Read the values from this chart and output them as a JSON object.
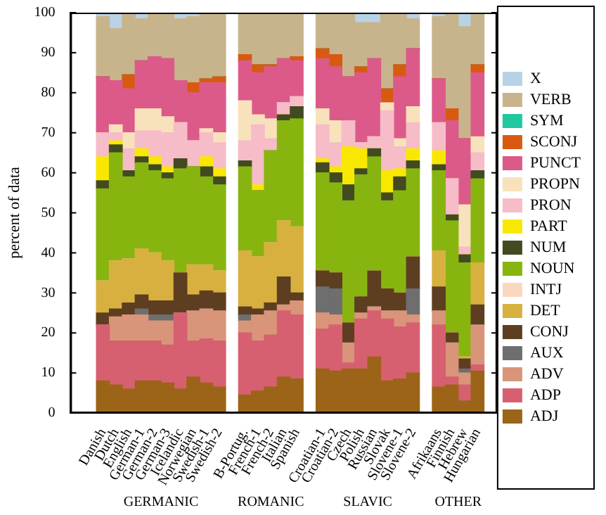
{
  "chart_data": {
    "type": "bar",
    "stacked": true,
    "ylabel": "percent of data",
    "legend": "right",
    "annotations": [
      "GERMANIC",
      "ROMANIC",
      "SLAVIC",
      "OTHER"
    ],
    "categories": [
      null,
      null,
      "Danish",
      "Dutch",
      "English",
      "German-1",
      "German-2",
      "German-3",
      "Icelandic",
      "Norwegian",
      "Swedish-1",
      "Swedish-2",
      null,
      "B-Portug.",
      "French-1",
      "French-2",
      "Italian",
      "Spanish",
      null,
      "Croatian-1",
      "Croatian-2",
      "Czech",
      "Polish",
      "Russian",
      "Slovak",
      "Slovene-1",
      "Slovene-2",
      null,
      "Afrikaans",
      "Finnish",
      "Hebrew",
      "Hungarian",
      null
    ],
    "ylim": [
      0,
      100
    ],
    "yticks": [
      0,
      10,
      20,
      30,
      40,
      50,
      60,
      70,
      80,
      90,
      100
    ],
    "series": [
      {
        "name": "ADJ",
        "color": "#9c6418",
        "values": [
          null,
          null,
          8,
          7,
          6,
          8,
          8,
          7.5,
          6,
          9,
          7.5,
          6.5,
          null,
          4.5,
          5.5,
          6.5,
          9,
          8.5,
          null,
          11,
          10.5,
          11,
          11,
          14,
          8,
          8.5,
          10,
          null,
          6.5,
          7,
          3,
          10.5,
          null
        ]
      },
      {
        "name": "ADP",
        "color": "#d66070",
        "values": [
          null,
          null,
          14,
          11,
          12,
          10,
          10,
          9.5,
          19,
          9,
          11,
          11.5,
          null,
          15.5,
          12.5,
          13,
          16.5,
          16,
          null,
          10,
          11.5,
          1.5,
          12.5,
          11.5,
          15.5,
          13,
          12.5,
          null,
          15.5,
          2,
          4,
          1.5,
          null
        ]
      },
      {
        "name": "ADV",
        "color": "#d8957a",
        "values": [
          null,
          null,
          0,
          6,
          6.5,
          6.5,
          5,
          6,
          0,
          7.5,
          7.5,
          7.5,
          null,
          3,
          6.5,
          6,
          1.5,
          3.5,
          null,
          4,
          2.5,
          5,
          1.5,
          1,
          2,
          4,
          2,
          null,
          3.5,
          8.5,
          3,
          10,
          null
        ]
      },
      {
        "name": "AUX",
        "color": "#6e6e6e",
        "values": [
          null,
          null,
          0,
          0,
          0,
          1.5,
          1.5,
          1.5,
          0,
          0,
          0,
          0,
          null,
          1.5,
          0,
          0,
          0,
          0,
          null,
          6.5,
          6.5,
          0,
          0,
          0,
          0,
          0,
          6.5,
          null,
          0,
          0,
          1,
          0,
          null
        ]
      },
      {
        "name": "CONJ",
        "color": "#5e3e20",
        "values": [
          null,
          null,
          3,
          2,
          3,
          3.5,
          3.5,
          3.5,
          10,
          4,
          4.5,
          4.5,
          null,
          2,
          1.5,
          2,
          7,
          2,
          null,
          4,
          4,
          5,
          4,
          9,
          5.5,
          4.5,
          8,
          null,
          6,
          2.5,
          2.5,
          5,
          null
        ]
      },
      {
        "name": "DET",
        "color": "#d8b040",
        "values": [
          null,
          null,
          8,
          12,
          11,
          11.5,
          12,
          10,
          0,
          7.5,
          6.5,
          5.5,
          null,
          14,
          13,
          15,
          14,
          16.5,
          null,
          0,
          0,
          0,
          0,
          0,
          0,
          0,
          0,
          null,
          9,
          0,
          0.5,
          10.5,
          null
        ]
      },
      {
        "name": "INTJ",
        "color": "#fad8c0",
        "values": [
          null,
          null,
          0,
          0,
          0,
          0,
          0,
          0,
          0,
          0,
          0,
          0,
          null,
          0,
          0,
          0,
          0,
          0,
          null,
          0,
          0,
          0,
          0,
          0,
          0,
          0,
          0,
          null,
          0,
          0,
          0,
          0,
          null
        ]
      },
      {
        "name": "NOUN",
        "color": "#88b410",
        "values": [
          null,
          null,
          23,
          27,
          20.5,
          21.5,
          20.5,
          20.5,
          26,
          24.5,
          22,
          21.5,
          null,
          21,
          16.5,
          23,
          25,
          27,
          null,
          24.5,
          22.5,
          30.5,
          30.5,
          28.5,
          22,
          25.5,
          22,
          null,
          20,
          28,
          23.5,
          21,
          null
        ]
      },
      {
        "name": "NUM",
        "color": "#424a22",
        "values": [
          null,
          null,
          2,
          2,
          1.5,
          1.5,
          1.5,
          1.5,
          2.5,
          0,
          2.5,
          2,
          null,
          1.5,
          0,
          0,
          1.5,
          3,
          null,
          2.5,
          2.5,
          4,
          1.5,
          2,
          2,
          3.5,
          2,
          null,
          1.5,
          1.5,
          2,
          2,
          null
        ]
      },
      {
        "name": "PART",
        "color": "#f8e800",
        "values": [
          null,
          null,
          6,
          1,
          0,
          2,
          2,
          1.5,
          0,
          0,
          2.5,
          2,
          null,
          0,
          1.5,
          0,
          0,
          0,
          null,
          1,
          1.5,
          9.5,
          5,
          0,
          5.5,
          2,
          3,
          null,
          3.5,
          0,
          0,
          0,
          null
        ]
      },
      {
        "name": "PRON",
        "color": "#f6bcc8",
        "values": [
          null,
          null,
          6,
          2,
          5.5,
          4.5,
          6.5,
          8.5,
          9,
          6.5,
          6,
          6.5,
          null,
          5,
          15,
          3,
          3,
          2.5,
          null,
          8.5,
          6,
          6.5,
          1.5,
          3,
          15,
          5.5,
          6.5,
          null,
          7,
          9,
          2,
          4.5,
          null
        ]
      },
      {
        "name": "PROPN",
        "color": "#f8e2bc",
        "values": [
          null,
          null,
          0,
          2,
          4,
          5.5,
          5.5,
          4,
          0,
          0,
          1,
          2.5,
          null,
          10,
          2.5,
          5,
          0,
          0,
          null,
          4,
          5.5,
          0,
          0,
          0,
          2,
          2,
          4,
          null,
          0,
          0,
          10.5,
          4,
          null
        ]
      },
      {
        "name": "PUNCT",
        "color": "#dc5a8a",
        "values": [
          null,
          null,
          14,
          11,
          11,
          12,
          13,
          14.5,
          10.5,
          12,
          11.5,
          12.5,
          null,
          10,
          10.5,
          13,
          11,
          9,
          null,
          12.5,
          13.5,
          11,
          17.5,
          19.5,
          0,
          15.5,
          14.5,
          null,
          11,
          14.5,
          16.5,
          16,
          null
        ]
      },
      {
        "name": "SCONJ",
        "color": "#d85a10",
        "values": [
          null,
          null,
          0,
          0,
          3.5,
          0,
          0,
          0,
          0,
          2.5,
          1,
          1.5,
          null,
          1.5,
          2,
          0.5,
          0,
          1,
          null,
          2.5,
          3,
          0,
          1.5,
          0,
          3.5,
          3,
          0,
          null,
          0,
          3,
          0,
          2,
          null
        ]
      },
      {
        "name": "SYM",
        "color": "#20c8a0",
        "values": [
          null,
          null,
          0,
          0,
          0,
          0,
          0,
          0,
          0,
          0,
          0,
          0,
          null,
          0,
          0,
          0,
          0,
          0,
          null,
          0,
          0,
          0,
          0,
          0,
          0,
          0,
          0,
          null,
          0,
          0,
          0,
          0,
          null
        ]
      },
      {
        "name": "VERB",
        "color": "#c8b48c",
        "values": [
          null,
          null,
          15,
          13,
          15.5,
          10.5,
          11,
          11.5,
          15.5,
          16.5,
          16.5,
          16,
          null,
          10.5,
          13,
          13,
          11.5,
          11,
          null,
          9,
          10.5,
          16,
          11,
          9,
          19,
          13,
          7.5,
          null,
          15.5,
          24,
          28,
          13,
          null
        ]
      },
      {
        "name": "X",
        "color": "#b9d3e6",
        "values": [
          null,
          null,
          1,
          4,
          0,
          1.5,
          0,
          0,
          1.5,
          1,
          0,
          0,
          null,
          0,
          0,
          0,
          0,
          0,
          null,
          0,
          0,
          0,
          2.5,
          2.5,
          0,
          0,
          1.5,
          null,
          1,
          0,
          3.5,
          0,
          null
        ]
      }
    ]
  }
}
